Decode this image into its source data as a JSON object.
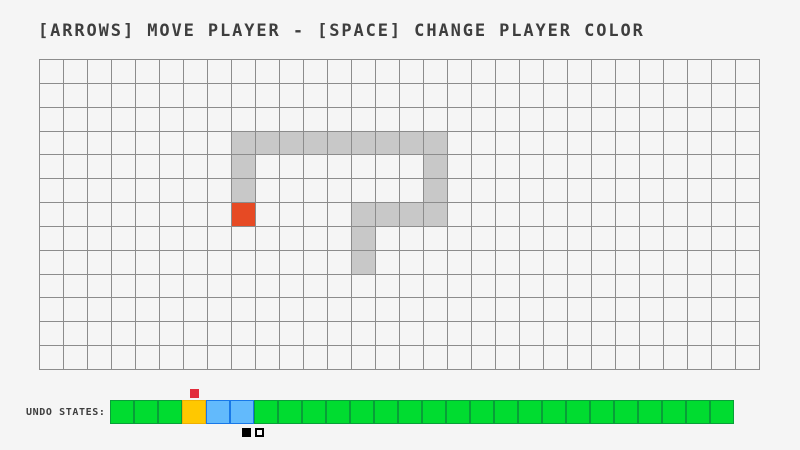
{
  "title": "[ARROWS] MOVE PLAYER - [SPACE] CHANGE PLAYER COLOR",
  "colors": {
    "background": "#F5F5F5",
    "text": "#3E3E3E",
    "grid_line": "#8C8C8C",
    "trail": "#C8C8C8",
    "player": "#E64A24",
    "undo_green_fill": "#00DC30",
    "undo_green_border": "#089F38",
    "undo_orange_fill": "#FFC800",
    "undo_orange_border": "#EFAF00",
    "undo_blue_fill": "#62BAFC",
    "undo_blue_border": "#1878E8",
    "indicator_red": "#E22C3C",
    "marker_black": "#000000",
    "marker_white": "#FBFBFB"
  },
  "grid": {
    "cols": 30,
    "rows": 13,
    "trail_cells": [
      [
        3,
        8
      ],
      [
        3,
        9
      ],
      [
        3,
        10
      ],
      [
        3,
        11
      ],
      [
        3,
        12
      ],
      [
        3,
        13
      ],
      [
        3,
        14
      ],
      [
        3,
        15
      ],
      [
        3,
        16
      ],
      [
        4,
        8
      ],
      [
        5,
        8
      ],
      [
        4,
        16
      ],
      [
        5,
        16
      ],
      [
        6,
        13
      ],
      [
        6,
        14
      ],
      [
        6,
        15
      ],
      [
        6,
        16
      ],
      [
        7,
        13
      ],
      [
        8,
        13
      ]
    ],
    "player_cell": [
      6,
      8
    ]
  },
  "undo_bar": {
    "label": "UNDO STATES:",
    "cells": [
      "green",
      "green",
      "green",
      "orange",
      "blue",
      "blue",
      "green",
      "green",
      "green",
      "green",
      "green",
      "green",
      "green",
      "green",
      "green",
      "green",
      "green",
      "green",
      "green",
      "green",
      "green",
      "green",
      "green",
      "green",
      "green",
      "green"
    ],
    "indicator_index": 3,
    "cursor_boundary_index": 6
  }
}
